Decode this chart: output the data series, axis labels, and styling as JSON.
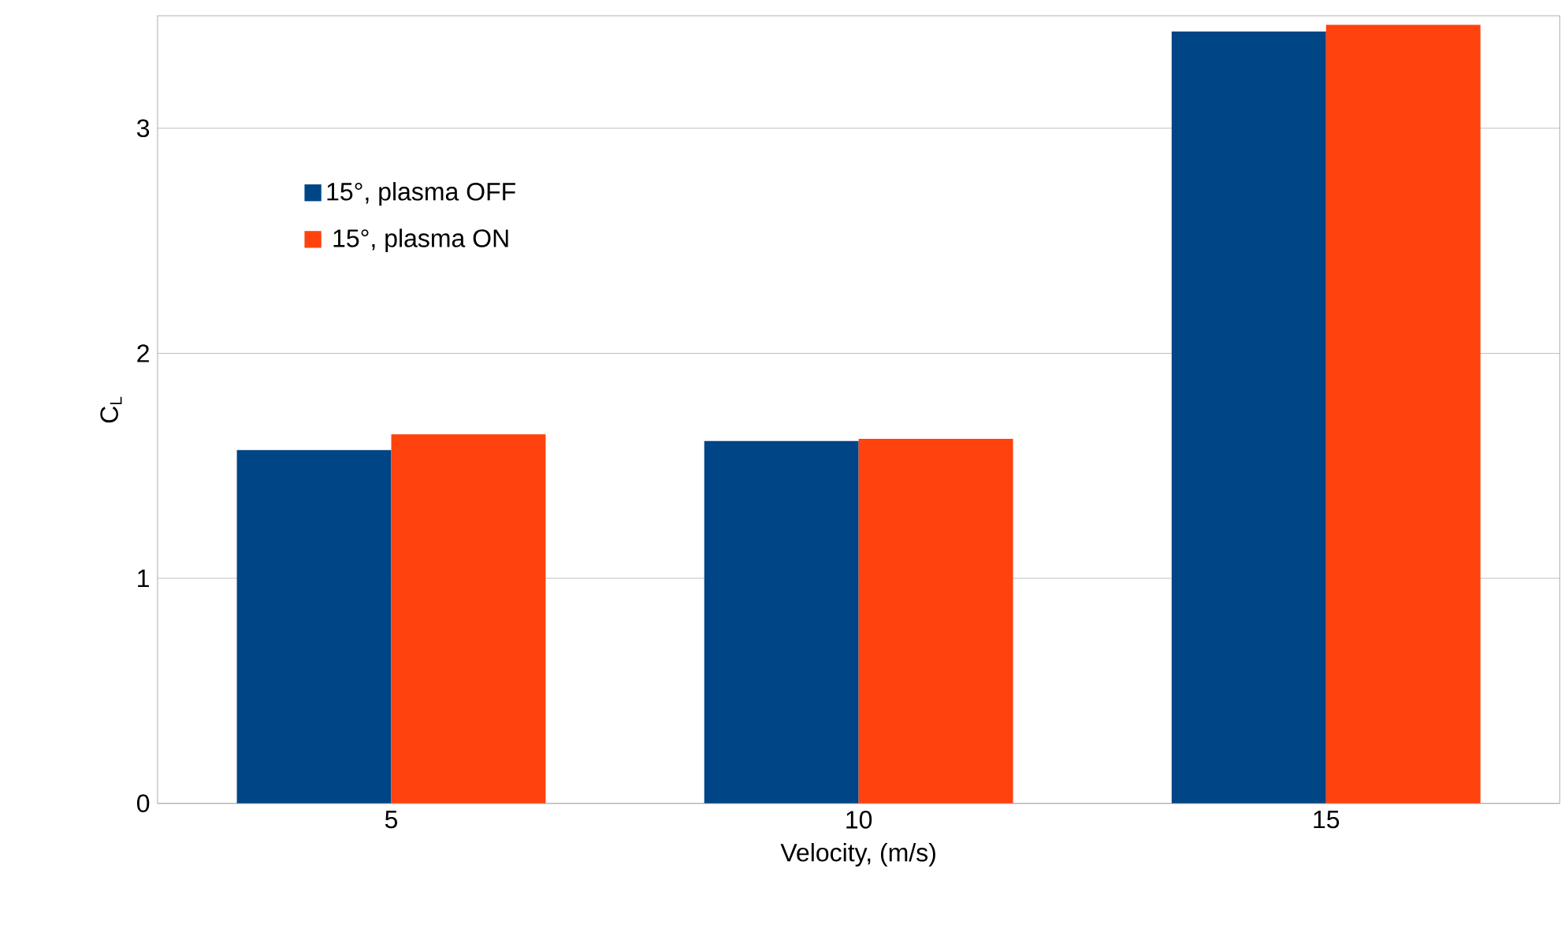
{
  "chart_data": {
    "type": "bar",
    "xlabel": "Velocity, (m/s)",
    "ylabel": "C$_{L}$",
    "categories": [
      "5",
      "10",
      "15"
    ],
    "series": [
      {
        "name": "15°, plasma OFF",
        "color": "#004586",
        "values": [
          1.57,
          1.61,
          3.43
        ]
      },
      {
        "name": "15°, plasma ON",
        "color": "#ff420e",
        "values": [
          1.64,
          1.62,
          3.46
        ]
      }
    ],
    "ylim": [
      0,
      3.5
    ],
    "yticks": [
      0,
      1,
      2,
      3
    ],
    "grid": "y",
    "legend": "top left"
  }
}
